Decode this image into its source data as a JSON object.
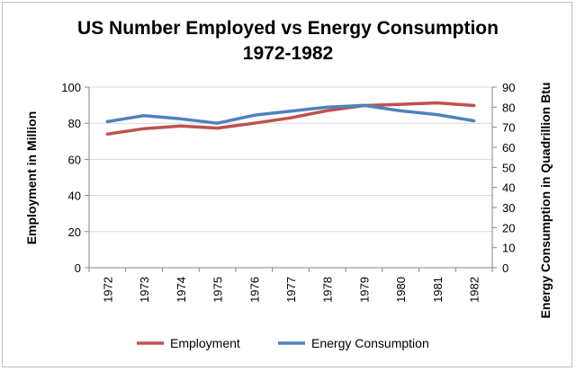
{
  "chart_data": {
    "type": "line",
    "title": "US Number Employed vs Energy Consumption",
    "subtitle": "1972-1982",
    "ylabel": "Employment in Million",
    "y2label": "Energy Consumption in Quadrillion Btu",
    "categories": [
      "1972",
      "1973",
      "1974",
      "1975",
      "1976",
      "1977",
      "1978",
      "1979",
      "1980",
      "1981",
      "1982"
    ],
    "ylim": [
      0,
      100
    ],
    "yticks": [
      "0",
      "20",
      "40",
      "60",
      "80",
      "100"
    ],
    "y2lim": [
      0,
      90
    ],
    "y2ticks": [
      "0",
      "10",
      "20",
      "30",
      "40",
      "50",
      "60",
      "70",
      "80",
      "90"
    ],
    "grid": true,
    "legend_position": "bottom",
    "series": [
      {
        "name": "Employment",
        "axis": "left",
        "color": "#c0504d",
        "values": [
          74.0,
          77.0,
          78.5,
          77.3,
          80.0,
          83.0,
          87.0,
          89.8,
          90.5,
          91.3,
          89.8
        ]
      },
      {
        "name": "Energy Consumption",
        "axis": "right",
        "color": "#4f81bd",
        "values": [
          72.8,
          75.8,
          74.2,
          72.0,
          76.0,
          78.0,
          80.0,
          80.9,
          78.2,
          76.3,
          73.2
        ]
      }
    ]
  }
}
